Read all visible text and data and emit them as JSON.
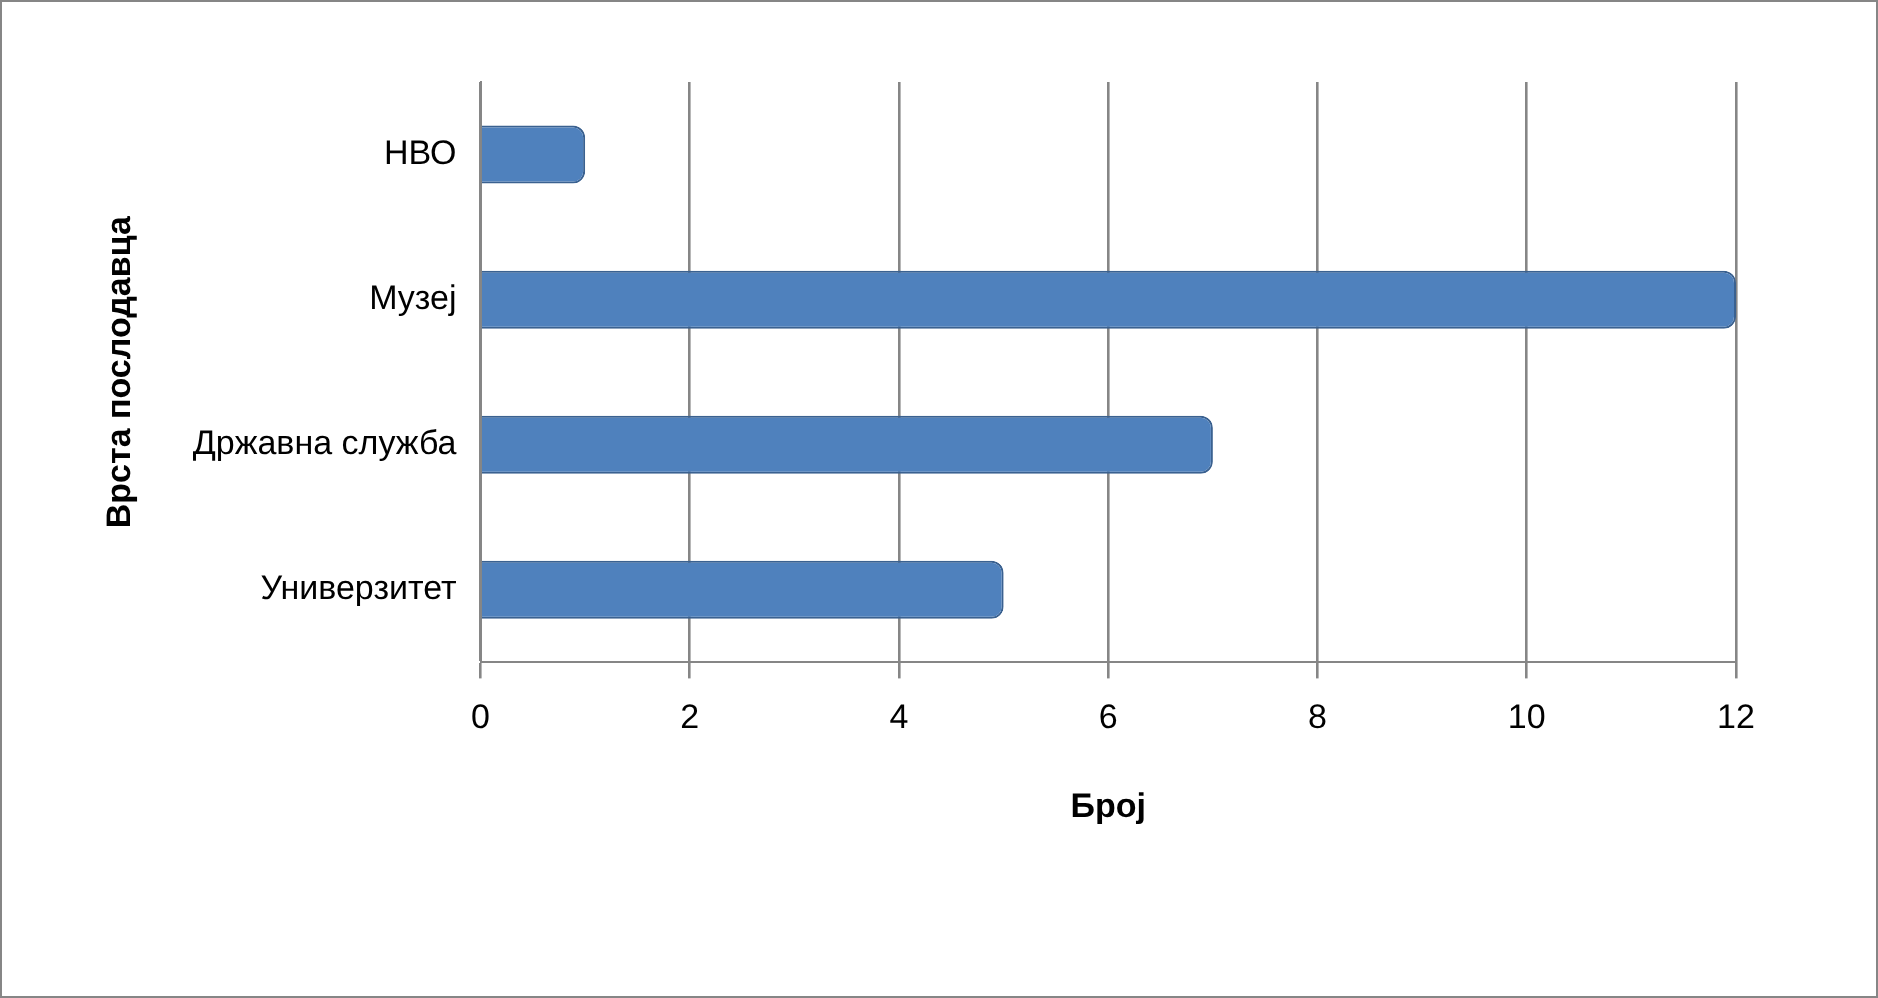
{
  "chart_data": {
    "type": "bar",
    "orientation": "horizontal",
    "xlabel": "Број",
    "ylabel": "Врста послодавца",
    "categories": [
      "НВО",
      "Музеј",
      "Државна служба",
      "Универзитет"
    ],
    "values": [
      1,
      12,
      7,
      5
    ],
    "color": "#4f81bd",
    "xlim": [
      0,
      12
    ],
    "xticks": [
      0,
      2,
      4,
      6,
      8,
      10,
      12
    ],
    "grid": "x",
    "legend": false
  }
}
